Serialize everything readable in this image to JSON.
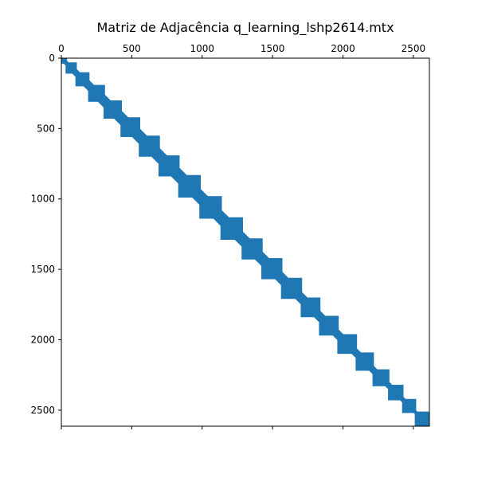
{
  "chart_data": {
    "type": "scatter",
    "title": "Matriz de Adjacência q_learning_lshp2614.mtx",
    "xlabel": "",
    "ylabel": "",
    "matrix_size": 2614,
    "xlim": [
      0,
      2614
    ],
    "ylim": [
      2614,
      0
    ],
    "x_ticks": [
      0,
      500,
      1000,
      1500,
      2000,
      2500
    ],
    "y_ticks": [
      0,
      500,
      1000,
      1500,
      2000,
      2500
    ],
    "x_tick_labels": [
      "0",
      "500",
      "1000",
      "1500",
      "2000",
      "2500"
    ],
    "y_tick_labels": [
      "0",
      "500",
      "1000",
      "1500",
      "2000",
      "2500"
    ],
    "x_axis_position": "top",
    "grid": false,
    "marker_color": "#1f77b4",
    "pattern": "banded diagonal sparsity (spy plot)",
    "band_blocks": [
      {
        "start": 0,
        "end": 40,
        "halfwidth": 12
      },
      {
        "start": 30,
        "end": 110,
        "halfwidth": 22
      },
      {
        "start": 100,
        "end": 200,
        "halfwidth": 32
      },
      {
        "start": 190,
        "end": 310,
        "halfwidth": 42
      },
      {
        "start": 300,
        "end": 430,
        "halfwidth": 50
      },
      {
        "start": 420,
        "end": 560,
        "halfwidth": 55
      },
      {
        "start": 550,
        "end": 700,
        "halfwidth": 58
      },
      {
        "start": 690,
        "end": 840,
        "halfwidth": 60
      },
      {
        "start": 830,
        "end": 990,
        "halfwidth": 60
      },
      {
        "start": 980,
        "end": 1140,
        "halfwidth": 60
      },
      {
        "start": 1130,
        "end": 1290,
        "halfwidth": 58
      },
      {
        "start": 1280,
        "end": 1430,
        "halfwidth": 55
      },
      {
        "start": 1420,
        "end": 1570,
        "halfwidth": 52
      },
      {
        "start": 1560,
        "end": 1710,
        "halfwidth": 48
      },
      {
        "start": 1700,
        "end": 1840,
        "halfwidth": 45
      },
      {
        "start": 1830,
        "end": 1970,
        "halfwidth": 42
      },
      {
        "start": 1960,
        "end": 2100,
        "halfwidth": 38
      },
      {
        "start": 2090,
        "end": 2220,
        "halfwidth": 34
      },
      {
        "start": 2210,
        "end": 2330,
        "halfwidth": 30
      },
      {
        "start": 2320,
        "end": 2430,
        "halfwidth": 24
      },
      {
        "start": 2420,
        "end": 2520,
        "halfwidth": 18
      },
      {
        "start": 2510,
        "end": 2614,
        "halfwidth": 12
      }
    ]
  }
}
